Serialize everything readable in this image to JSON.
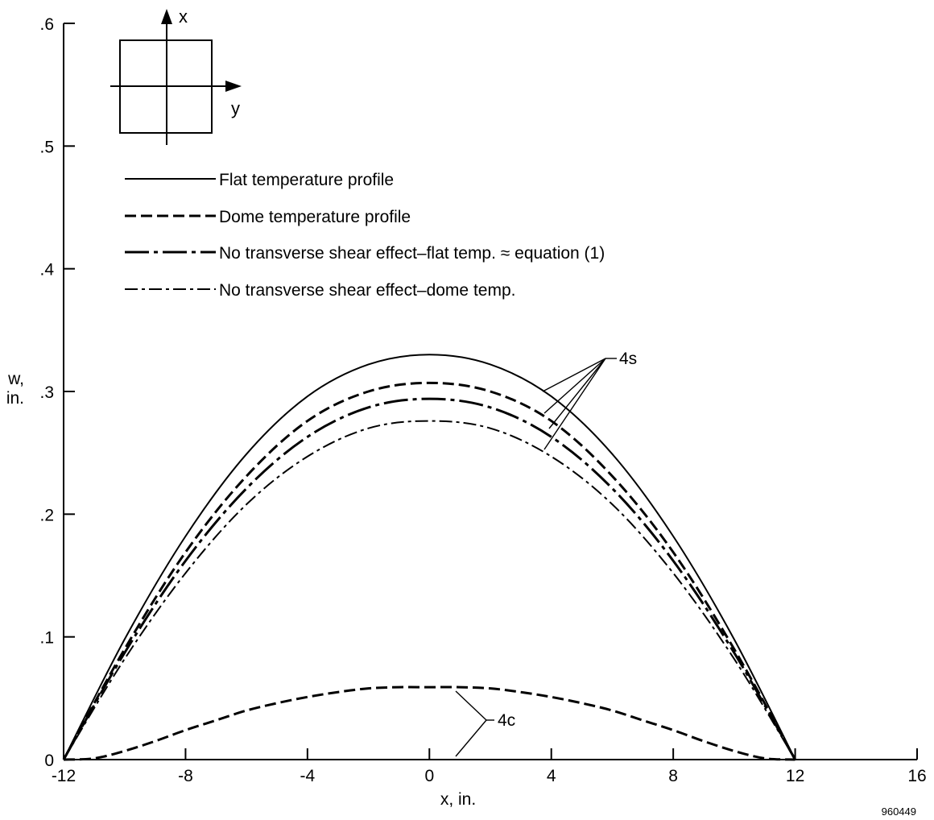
{
  "chart_data": {
    "type": "line",
    "xlabel": "x, in.",
    "ylabel_line1": "w,",
    "ylabel_line2": "in.",
    "xlim": [
      -12,
      16
    ],
    "ylim": [
      0,
      0.6
    ],
    "x_ticks": [
      -12,
      -8,
      -4,
      0,
      4,
      8,
      12,
      16
    ],
    "x_tick_labels": [
      "-12",
      "-8",
      "-4",
      "0",
      "4",
      "8",
      "12",
      "16"
    ],
    "y_ticks": [
      0,
      0.1,
      0.2,
      0.3,
      0.4,
      0.5,
      0.6
    ],
    "y_tick_labels": [
      "0",
      ".1",
      ".2",
      ".3",
      ".4",
      ".5",
      ".6"
    ],
    "grid": false,
    "legend_placement": "top-left",
    "legend": [
      "Flat temperature profile",
      "Dome temperature profile",
      "No transverse shear effect–flat temp. ≈ equation (1)",
      "No transverse shear effect–dome temp."
    ],
    "series": [
      {
        "name": "Flat temperature profile",
        "group": "4s",
        "style": "solid",
        "x": [
          -12,
          -10,
          -8,
          -6,
          -4,
          -2,
          0,
          2,
          4,
          6,
          8,
          10,
          12
        ],
        "y": [
          0,
          0.098,
          0.182,
          0.249,
          0.296,
          0.322,
          0.33,
          0.322,
          0.296,
          0.249,
          0.182,
          0.098,
          0
        ]
      },
      {
        "name": "Dome temperature profile",
        "group": "4s",
        "style": "dashed",
        "x": [
          -12,
          -10,
          -8,
          -6,
          -4,
          -2,
          0,
          2,
          4,
          6,
          8,
          10,
          12
        ],
        "y": [
          0,
          0.09,
          0.169,
          0.231,
          0.276,
          0.3,
          0.307,
          0.3,
          0.276,
          0.231,
          0.169,
          0.09,
          0
        ]
      },
      {
        "name": "No transverse shear effect–flat temp. ≈ equation (1)",
        "group": "4s",
        "style": "longdash-dot",
        "x": [
          -12,
          -10,
          -8,
          -6,
          -4,
          -2,
          0,
          2,
          4,
          6,
          8,
          10,
          12
        ],
        "y": [
          0,
          0.087,
          0.162,
          0.221,
          0.263,
          0.287,
          0.294,
          0.287,
          0.263,
          0.221,
          0.162,
          0.087,
          0
        ]
      },
      {
        "name": "No transverse shear effect–dome temp.",
        "group": "4s",
        "style": "dash-dot",
        "x": [
          -12,
          -10,
          -8,
          -6,
          -4,
          -2,
          0,
          2,
          4,
          6,
          8,
          10,
          12
        ],
        "y": [
          0,
          0.082,
          0.152,
          0.208,
          0.247,
          0.27,
          0.276,
          0.27,
          0.247,
          0.208,
          0.152,
          0.082,
          0
        ]
      },
      {
        "name": "4c",
        "group": "4c",
        "style": "dashed",
        "x": [
          -12,
          -11,
          -10,
          -9,
          -8,
          -7,
          -6,
          -5,
          -4,
          -3,
          -2,
          -1,
          0,
          1,
          2,
          3,
          4,
          5,
          6,
          7,
          8,
          9,
          10,
          11,
          12
        ],
        "y": [
          0,
          0.001,
          0.007,
          0.015,
          0.024,
          0.032,
          0.04,
          0.046,
          0.051,
          0.055,
          0.058,
          0.059,
          0.059,
          0.059,
          0.058,
          0.055,
          0.051,
          0.046,
          0.04,
          0.032,
          0.024,
          0.015,
          0.007,
          0.001,
          0
        ]
      }
    ],
    "annotations": [
      "4s",
      "4c"
    ],
    "inset": {
      "axis_x": "x",
      "axis_y": "y"
    },
    "figure_number": "960449"
  }
}
